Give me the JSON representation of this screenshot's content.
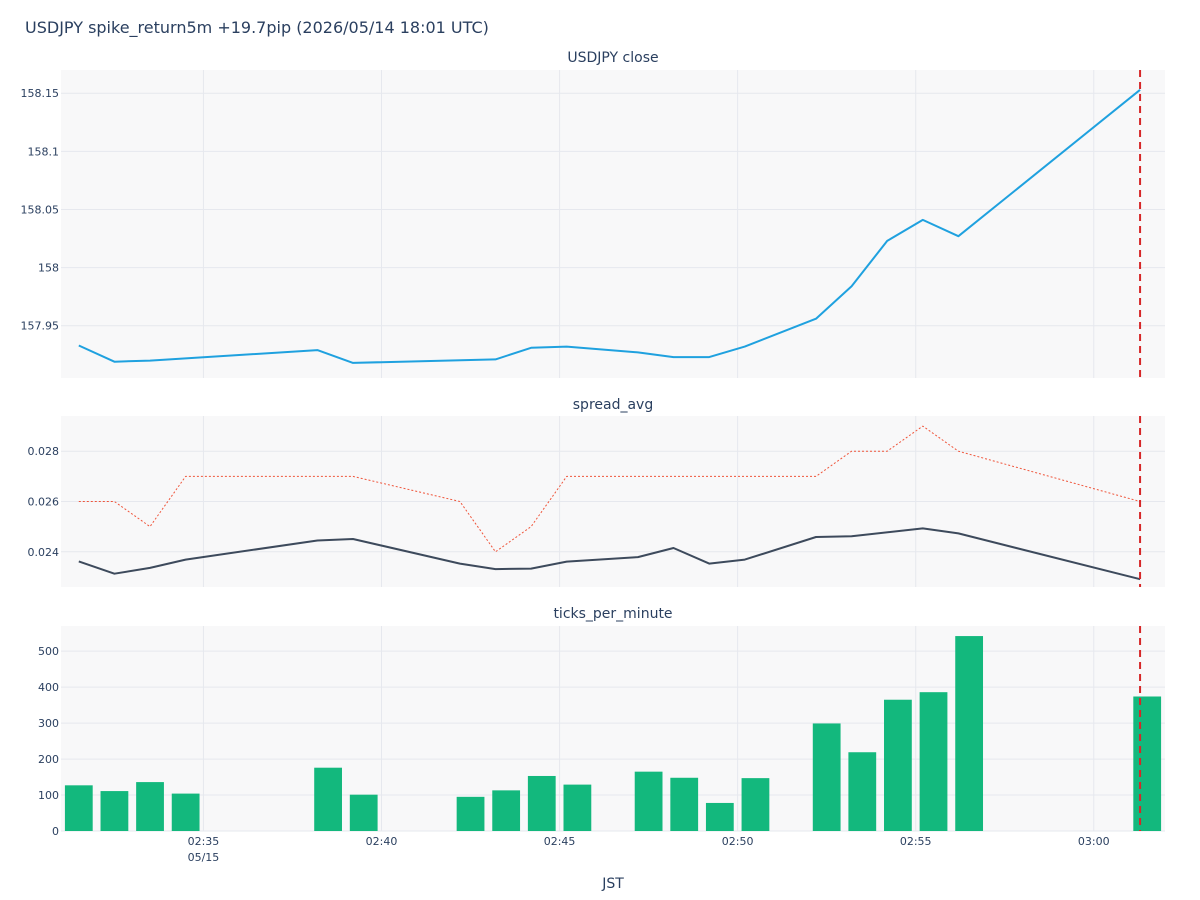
{
  "figure": {
    "title": "USDJPY spike_return5m +19.7pip (2026/05/14 18:01 UTC)",
    "x_axis_label": "JST",
    "event_marker_color": "#d62728",
    "x_ticks": [
      {
        "time": "02:35",
        "label": "02:35",
        "sublabel": "05/15"
      },
      {
        "time": "02:40",
        "label": "02:40",
        "sublabel": ""
      },
      {
        "time": "02:45",
        "label": "02:45",
        "sublabel": ""
      },
      {
        "time": "02:50",
        "label": "02:50",
        "sublabel": ""
      },
      {
        "time": "02:55",
        "label": "02:55",
        "sublabel": ""
      },
      {
        "time": "03:00",
        "label": "03:00",
        "sublabel": ""
      }
    ]
  },
  "chart_data": [
    {
      "type": "line",
      "title": "USDJPY close",
      "x_unit": "JST time (2026-05-15)",
      "x_range": [
        "02:31",
        "03:02"
      ],
      "ylim": [
        157.905,
        158.17
      ],
      "y_ticks": [
        157.95,
        158,
        158.05,
        158.1,
        158.15
      ],
      "y_tick_labels": [
        "157.95",
        "158",
        "158.05",
        "158.1",
        "158.15"
      ],
      "grid": true,
      "event_line_x": "03:01.3",
      "series": [
        {
          "name": "USDJPY close",
          "color": "#1fa1df",
          "style": "solid",
          "x": [
            "02:31.5",
            "02:32.5",
            "02:33.5",
            "02:38.2",
            "02:39.2",
            "02:43.2",
            "02:44.2",
            "02:45.2",
            "02:47.2",
            "02:48.2",
            "02:49.2",
            "02:50.2",
            "02:52.2",
            "02:53.2",
            "02:54.2",
            "02:55.2",
            "02:56.2",
            "03:01.3"
          ],
          "values": [
            157.933,
            157.919,
            157.92,
            157.929,
            157.918,
            157.921,
            157.931,
            157.932,
            157.927,
            157.923,
            157.923,
            157.932,
            157.956,
            157.984,
            158.023,
            158.041,
            158.027,
            158.153
          ]
        }
      ]
    },
    {
      "type": "line",
      "title": "spread_avg",
      "x_unit": "JST time (2026-05-15)",
      "x_range": [
        "02:31",
        "03:02"
      ],
      "ylim": [
        0.0226,
        0.0294
      ],
      "y_ticks": [
        0.024,
        0.026,
        0.028
      ],
      "y_tick_labels": [
        "0.024",
        "0.026",
        "0.028"
      ],
      "grid": true,
      "event_line_x": "03:01.3",
      "series": [
        {
          "color": "#ef553b",
          "style": "dotted",
          "x": [
            "02:31.5",
            "02:32.5",
            "02:33.5",
            "02:34.5",
            "02:39.2",
            "02:42.2",
            "02:43.2",
            "02:44.2",
            "02:45.2",
            "02:52.2",
            "02:53.2",
            "02:54.2",
            "02:55.2",
            "02:56.2",
            "03:01.3"
          ],
          "values": [
            0.026,
            0.026,
            0.025,
            0.027,
            0.027,
            0.026,
            0.024,
            0.025,
            0.027,
            0.027,
            0.028,
            0.028,
            0.029,
            0.028,
            0.026
          ]
        },
        {
          "color": "#3d4a5c",
          "style": "solid",
          "x": [
            "02:31.5",
            "02:32.5",
            "02:33.5",
            "02:34.5",
            "02:38.2",
            "02:39.2",
            "02:42.2",
            "02:43.2",
            "02:44.2",
            "02:45.2",
            "02:47.2",
            "02:48.2",
            "02:49.2",
            "02:50.2",
            "02:52.2",
            "02:53.2",
            "02:55.2",
            "02:56.2",
            "03:01.3"
          ],
          "values": [
            0.02362,
            0.02313,
            0.02336,
            0.02369,
            0.02445,
            0.02451,
            0.02353,
            0.02331,
            0.02333,
            0.02361,
            0.02379,
            0.02415,
            0.02353,
            0.02369,
            0.02459,
            0.02462,
            0.02493,
            0.02473,
            0.02291
          ]
        }
      ]
    },
    {
      "type": "bar",
      "title": "ticks_per_minute",
      "x_unit": "JST time (2026-05-15)",
      "x_range": [
        "02:31",
        "03:02"
      ],
      "ylim": [
        0,
        570
      ],
      "y_ticks": [
        0,
        100,
        200,
        300,
        400,
        500
      ],
      "y_tick_labels": [
        "0",
        "100",
        "200",
        "300",
        "400",
        "500"
      ],
      "grid": true,
      "bar_color": "#13b87d",
      "event_line_x": "03:01.3",
      "x": [
        "02:31.5",
        "02:32.5",
        "02:33.5",
        "02:34.5",
        "02:38.5",
        "02:39.5",
        "02:42.5",
        "02:43.5",
        "02:44.5",
        "02:45.5",
        "02:47.5",
        "02:48.5",
        "02:49.5",
        "02:50.5",
        "02:52.5",
        "02:53.5",
        "02:54.5",
        "02:55.5",
        "02:56.5",
        "03:01.5"
      ],
      "values": [
        127,
        111,
        136,
        104,
        176,
        101,
        95,
        113,
        153,
        129,
        165,
        148,
        78,
        147,
        299,
        219,
        365,
        386,
        542,
        374
      ]
    }
  ]
}
